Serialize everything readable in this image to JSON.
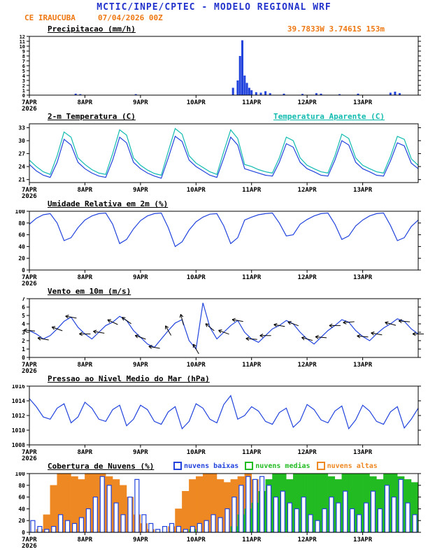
{
  "header": {
    "title": "MCTIC/INPE/CPTEC - MODELO REGIONAL WRF",
    "station": "CE IRAUCUBA",
    "run": "07/04/2026 00Z",
    "location": "39.7833W 3.7461S 153m",
    "accent_blue": "#2233cc",
    "accent_orange": "#ee7711"
  },
  "x_axis": {
    "hours_total": 168,
    "tick_hours": [
      0,
      24,
      48,
      72,
      96,
      120,
      144
    ],
    "tick_labels": [
      "7APR",
      "8APR",
      "9APR",
      "10APR",
      "11APR",
      "12APR",
      "13APR"
    ],
    "year_label": "2026"
  },
  "chart_data": [
    {
      "type": "bar",
      "title": "Precipitacao (mm/h)",
      "ylabel": "mm/h",
      "ylim": [
        0,
        12
      ],
      "yticks": [
        0,
        1,
        2,
        3,
        4,
        5,
        6,
        7,
        8,
        9,
        10,
        11,
        12
      ],
      "small_ticks": true,
      "color": "#2244dd",
      "points": [
        [
          20,
          0.3
        ],
        [
          22,
          0.2
        ],
        [
          46,
          0.2
        ],
        [
          88,
          1.5
        ],
        [
          90,
          3
        ],
        [
          91,
          8
        ],
        [
          92,
          11.2
        ],
        [
          93,
          4
        ],
        [
          94,
          2.5
        ],
        [
          95,
          1.5
        ],
        [
          96,
          1
        ],
        [
          98,
          0.6
        ],
        [
          100,
          0.5
        ],
        [
          102,
          0.8
        ],
        [
          104,
          0.4
        ],
        [
          110,
          0.3
        ],
        [
          118,
          0.25
        ],
        [
          124,
          0.4
        ],
        [
          126,
          0.3
        ],
        [
          134,
          0.2
        ],
        [
          142,
          0.3
        ],
        [
          156,
          0.5
        ],
        [
          158,
          0.7
        ],
        [
          160,
          0.4
        ]
      ]
    },
    {
      "type": "line",
      "title": "2-m Temperatura (C)",
      "right_label": "Temperatura Aparente (C)",
      "ylim": [
        20.3,
        33.9
      ],
      "yticks": [
        21,
        24,
        27,
        30,
        33
      ],
      "step": 3,
      "series": [
        {
          "name": "2-m Temperatura (C)",
          "color": "#2244dd",
          "values": [
            24.5,
            23,
            22,
            21.5,
            25,
            30.3,
            29,
            25,
            23.5,
            22.5,
            21.8,
            21.5,
            25.5,
            30.8,
            29.5,
            25,
            23.5,
            22.5,
            21.8,
            21.3,
            26,
            31,
            29.8,
            25.5,
            24,
            23,
            22,
            21.5,
            26,
            30.8,
            29,
            23.5,
            23,
            22.5,
            22,
            21.8,
            25,
            29.3,
            28.5,
            25,
            23.5,
            22.8,
            22,
            21.8,
            25.5,
            30,
            29,
            25,
            23.5,
            22.8,
            22,
            21.8,
            25.3,
            29.5,
            28.8,
            24.8,
            23.5
          ]
        },
        {
          "name": "Temperatura Aparente (C)",
          "color": "#11bbb0",
          "values": [
            25.5,
            24,
            22.8,
            22.2,
            26.5,
            32,
            30.8,
            26,
            24.5,
            23.3,
            22.5,
            22.2,
            27,
            32.5,
            31.3,
            26,
            24.3,
            23.2,
            22.4,
            22,
            27.5,
            32.8,
            31.5,
            26.5,
            24.8,
            23.8,
            22.8,
            22.2,
            27.5,
            32.5,
            30.5,
            24.5,
            24,
            23.3,
            22.8,
            22.5,
            26,
            30.8,
            30,
            26,
            24.3,
            23.5,
            22.8,
            22.5,
            26.5,
            31.5,
            30.5,
            26,
            24.3,
            23.5,
            22.8,
            22.5,
            26.3,
            31,
            30.3,
            25.8,
            24.3
          ]
        }
      ]
    },
    {
      "type": "line",
      "title": "Umidade Relativa em 2m (%)",
      "ylim": [
        0,
        100
      ],
      "yticks": [
        0,
        20,
        40,
        60,
        80,
        100
      ],
      "step": 3,
      "series": [
        {
          "name": "Umidade Relativa em 2m (%)",
          "color": "#2244dd",
          "values": [
            78,
            88,
            94,
            96,
            80,
            50,
            55,
            72,
            85,
            92,
            96,
            97,
            78,
            45,
            52,
            70,
            84,
            92,
            96,
            97,
            72,
            40,
            48,
            68,
            82,
            90,
            95,
            96,
            75,
            45,
            55,
            85,
            90,
            94,
            96,
            97,
            80,
            58,
            60,
            78,
            86,
            92,
            96,
            97,
            78,
            52,
            58,
            75,
            85,
            92,
            96,
            97,
            76,
            50,
            55,
            74,
            85
          ]
        }
      ]
    },
    {
      "type": "wind",
      "title": "Vento em 10m (m/s)",
      "ylim": [
        0,
        7
      ],
      "yticks": [
        0,
        1,
        2,
        3,
        4,
        5,
        6,
        7
      ],
      "step": 3,
      "arrow_step": 6,
      "arrow_dirs": [
        95,
        100,
        110,
        100,
        90,
        100,
        115,
        125,
        110,
        100,
        150,
        165,
        150,
        130,
        110,
        100,
        95,
        90,
        100,
        110,
        105,
        95,
        90,
        85,
        95,
        100,
        105,
        95,
        90
      ],
      "series": [
        {
          "name": "Vento em 10m (m/s)",
          "color": "#2244dd",
          "values": [
            3.2,
            2.8,
            2.2,
            2.6,
            3.4,
            4.3,
            4.8,
            3.6,
            2.8,
            2.2,
            3,
            3.8,
            4.2,
            4.9,
            4.4,
            3.2,
            2.4,
            1.6,
            1.2,
            2.2,
            3.2,
            4.1,
            4.5,
            2,
            1,
            6.5,
            3.6,
            2.2,
            3,
            3.8,
            4.4,
            3,
            2.2,
            1.8,
            2.6,
            3.4,
            3.8,
            4.4,
            4,
            3,
            2.2,
            1.6,
            2.4,
            3.2,
            3.8,
            4.5,
            4.2,
            3.2,
            2.5,
            2,
            2.8,
            3.5,
            4,
            4.6,
            4.3,
            3.4,
            2.8
          ]
        }
      ]
    },
    {
      "type": "line",
      "title": "Pressao ao Nivel Medio do Mar (hPa)",
      "ylim": [
        1008,
        1016
      ],
      "yticks": [
        1008,
        1010,
        1012,
        1014,
        1016
      ],
      "step": 3,
      "series": [
        {
          "name": "Pressao ao Nivel Medio do Mar (hPa)",
          "color": "#2244dd",
          "values": [
            1014.3,
            1013.2,
            1011.8,
            1011.5,
            1013,
            1013.6,
            1011,
            1011.8,
            1013.8,
            1013,
            1011.5,
            1011.2,
            1012.8,
            1013.4,
            1010.6,
            1011.5,
            1013.4,
            1012.8,
            1011.2,
            1010.8,
            1012.5,
            1013.2,
            1010.2,
            1011.2,
            1013.6,
            1013,
            1011.5,
            1011,
            1013.5,
            1014.7,
            1011.5,
            1012,
            1013.2,
            1012.6,
            1011.2,
            1010.8,
            1012.4,
            1013,
            1010.4,
            1011.3,
            1013.5,
            1012.8,
            1011.4,
            1011,
            1012.6,
            1013.3,
            1010.2,
            1011.4,
            1013.4,
            1012.6,
            1011.2,
            1010.8,
            1012.5,
            1013.2,
            1010.3,
            1011.5,
            1013
          ]
        }
      ]
    },
    {
      "type": "bars3",
      "title": "Cobertura de Nuvens (%)",
      "ylim": [
        0,
        100
      ],
      "yticks": [
        0,
        20,
        40,
        60,
        80,
        100
      ],
      "step": 3,
      "series": [
        {
          "name": "nuvens baixas",
          "color": "#2244dd",
          "style": "outline",
          "values": [
            20,
            10,
            5,
            10,
            30,
            20,
            15,
            25,
            40,
            60,
            95,
            80,
            50,
            30,
            60,
            90,
            30,
            15,
            5,
            10,
            15,
            10,
            5,
            10,
            15,
            20,
            30,
            25,
            40,
            60,
            80,
            95,
            90,
            95,
            80,
            60,
            70,
            50,
            40,
            60,
            30,
            20,
            40,
            60,
            50,
            70,
            40,
            30,
            50,
            70,
            40,
            80,
            60,
            90,
            50,
            30,
            20
          ]
        },
        {
          "name": "nuvens medias",
          "color": "#22bb22",
          "style": "fill",
          "values": [
            0,
            0,
            0,
            0,
            0,
            0,
            0,
            0,
            0,
            0,
            0,
            0,
            0,
            0,
            0,
            0,
            0,
            0,
            0,
            0,
            0,
            0,
            0,
            5,
            0,
            0,
            0,
            0,
            0,
            10,
            30,
            40,
            50,
            70,
            90,
            100,
            100,
            90,
            100,
            100,
            100,
            100,
            100,
            95,
            90,
            100,
            100,
            100,
            100,
            95,
            90,
            100,
            100,
            95,
            90,
            85,
            80
          ]
        },
        {
          "name": "nuvens altas",
          "color": "#ee8822",
          "style": "fill",
          "values": [
            0,
            5,
            30,
            80,
            100,
            100,
            95,
            90,
            100,
            100,
            100,
            95,
            90,
            80,
            60,
            30,
            15,
            5,
            0,
            0,
            10,
            40,
            70,
            90,
            95,
            100,
            100,
            90,
            85,
            90,
            95,
            100,
            90,
            70,
            40,
            20,
            60,
            80,
            50,
            30,
            10,
            5,
            0,
            0,
            5,
            10,
            5,
            0,
            0,
            0,
            0,
            0,
            5,
            10,
            5,
            0,
            0
          ]
        }
      ]
    }
  ]
}
